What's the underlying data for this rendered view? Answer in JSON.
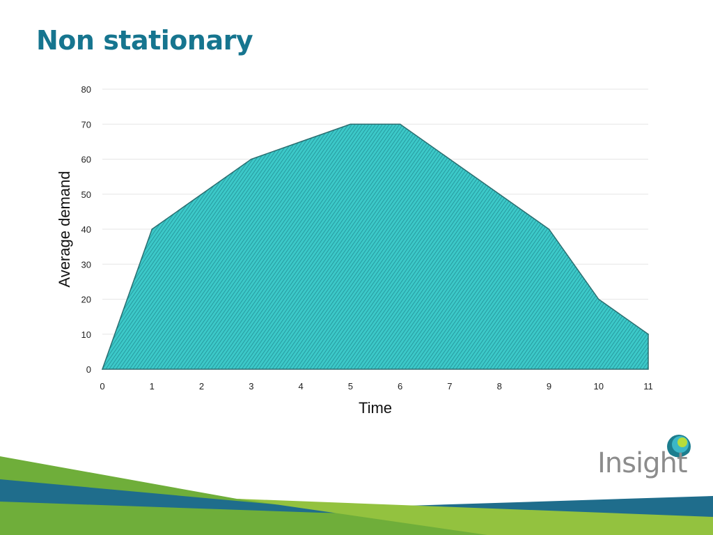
{
  "slide": {
    "title": "Non stationary"
  },
  "logo": {
    "text": "Insight"
  },
  "chart_data": {
    "type": "area",
    "x": [
      0,
      1,
      2,
      3,
      4,
      5,
      6,
      7,
      8,
      9,
      10,
      11
    ],
    "series": [
      {
        "values": [
          0,
          40,
          50,
          60,
          65,
          70,
          70,
          60,
          50,
          40,
          20,
          10
        ]
      }
    ],
    "xlabel": "Time",
    "ylabel": "Average demand",
    "xlim": [
      0,
      11
    ],
    "ylim": [
      0,
      80
    ],
    "xticks": [
      0,
      1,
      2,
      3,
      4,
      5,
      6,
      7,
      8,
      9,
      10,
      11
    ],
    "yticks": [
      0,
      10,
      20,
      30,
      40,
      50,
      60,
      70,
      80
    ],
    "grid": true,
    "fill_color": "#3cc8c8",
    "hatch_color": "#1a7f86",
    "line_color": "#2a6e70"
  },
  "colors": {
    "title": "#16758f",
    "band_green": "#6fae3a",
    "band_blue": "#1f6d8c"
  }
}
